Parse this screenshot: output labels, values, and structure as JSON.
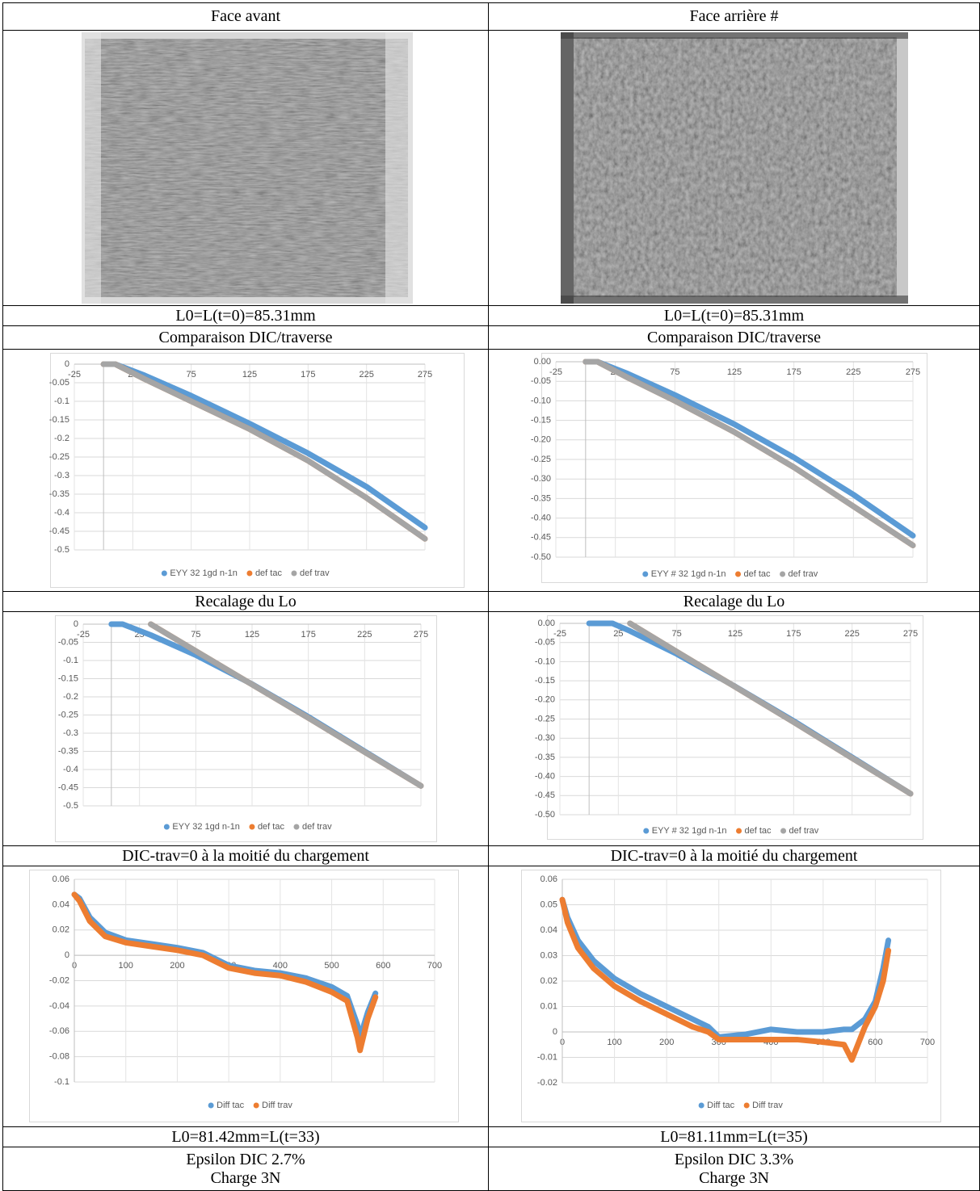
{
  "table": {
    "rows": [
      [
        "Face avant",
        "Face arrière #"
      ],
      [
        "L0=L(t=0)=85.31mm",
        "L0=L(t=0)=85.31mm"
      ],
      [
        "Comparaison DIC/traverse",
        "Comparaison DIC/traverse"
      ],
      [
        "Recalage du Lo",
        "Recalage du Lo"
      ],
      [
        "DIC-trav=0 à la moitié du chargement",
        "DIC-trav=0 à la moitié du chargement"
      ],
      [
        "L0=81.42mm=L(t=33)",
        "L0=81.11mm=L(t=35)"
      ],
      [
        [
          "Epsilon DIC 2.7%",
          "Charge 3N"
        ],
        [
          "Epsilon DIC 3.3%",
          "Charge 3N"
        ]
      ]
    ]
  },
  "chart_data": [
    {
      "type": "line",
      "grid": true,
      "legend": "bottom",
      "x": [
        0,
        10,
        35,
        75,
        125,
        175,
        225,
        275
      ],
      "xlim": [
        -25,
        275
      ],
      "xticks": [
        -25,
        25,
        75,
        125,
        175,
        225,
        275
      ],
      "ylim": [
        -0.5,
        0
      ],
      "yticks": [
        0,
        -0.05,
        -0.1,
        -0.15,
        -0.2,
        -0.25,
        -0.3,
        -0.35,
        -0.4,
        -0.45,
        -0.5
      ],
      "series": [
        {
          "name": "EYY 32 1gd n-1n",
          "color": "#5b9bd5",
          "values": [
            0,
            0,
            -0.03,
            -0.085,
            -0.16,
            -0.24,
            -0.33,
            -0.44
          ]
        },
        {
          "name": "def tac",
          "color": "#ed7d31",
          "values": [
            0,
            0,
            -0.04,
            -0.1,
            -0.175,
            -0.26,
            -0.36,
            -0.47
          ]
        },
        {
          "name": "def trav",
          "color": "#a5a5a5",
          "values": [
            0,
            0,
            -0.04,
            -0.1,
            -0.175,
            -0.26,
            -0.36,
            -0.47
          ]
        }
      ]
    },
    {
      "type": "line",
      "grid": true,
      "legend": "bottom",
      "x": [
        0,
        10,
        35,
        75,
        125,
        175,
        225,
        275
      ],
      "xlim": [
        -25,
        275
      ],
      "xticks": [
        -25,
        25,
        75,
        125,
        175,
        225,
        275
      ],
      "ylim": [
        -0.5,
        0
      ],
      "yticks": [
        {
          "value": 0,
          "label": "0.00"
        },
        -0.05,
        {
          "value": -0.1,
          "label": "-0.10"
        },
        -0.15,
        {
          "value": -0.2,
          "label": "-0.20"
        },
        -0.25,
        {
          "value": -0.3,
          "label": "-0.30"
        },
        -0.35,
        {
          "value": -0.4,
          "label": "-0.40"
        },
        -0.45,
        {
          "value": -0.5,
          "label": "-0.50"
        }
      ],
      "series": [
        {
          "name": "EYY # 32 1gd n-1n",
          "color": "#5b9bd5",
          "values": [
            0,
            0,
            -0.03,
            -0.085,
            -0.16,
            -0.245,
            -0.34,
            -0.445
          ]
        },
        {
          "name": "def tac",
          "color": "#ed7d31",
          "values": [
            0,
            0,
            -0.04,
            -0.1,
            -0.18,
            -0.27,
            -0.37,
            -0.47
          ]
        },
        {
          "name": "def trav",
          "color": "#a5a5a5",
          "values": [
            0,
            0,
            -0.04,
            -0.1,
            -0.18,
            -0.27,
            -0.37,
            -0.47
          ]
        }
      ]
    },
    {
      "type": "line",
      "grid": true,
      "legend": "bottom",
      "x": [
        0,
        10,
        35,
        75,
        125,
        175,
        225,
        275
      ],
      "xlim": [
        -25,
        275
      ],
      "xticks": [
        -25,
        25,
        75,
        125,
        175,
        225,
        275
      ],
      "ylim": [
        -0.5,
        0
      ],
      "yticks": [
        0,
        -0.05,
        -0.1,
        -0.15,
        -0.2,
        -0.25,
        -0.3,
        -0.35,
        -0.4,
        -0.45,
        -0.5
      ],
      "series": [
        {
          "name": "EYY 32 1gd n-1n",
          "color": "#5b9bd5",
          "values": [
            0,
            0,
            -0.03,
            -0.085,
            -0.165,
            -0.255,
            -0.35,
            -0.445
          ]
        },
        {
          "name": "def tac",
          "color": "#ed7d31",
          "values": [
            null,
            null,
            0,
            -0.074,
            -0.166,
            -0.258,
            -0.352,
            -0.445
          ]
        },
        {
          "name": "def trav",
          "color": "#a5a5a5",
          "values": [
            null,
            null,
            0,
            -0.074,
            -0.166,
            -0.258,
            -0.352,
            -0.445
          ]
        }
      ]
    },
    {
      "type": "line",
      "grid": true,
      "legend": "bottom",
      "x": [
        0,
        20,
        35,
        75,
        125,
        175,
        225,
        275
      ],
      "xlim": [
        -25,
        275
      ],
      "xticks": [
        -25,
        25,
        75,
        125,
        175,
        225,
        275
      ],
      "ylim": [
        -0.5,
        0
      ],
      "yticks": [
        {
          "value": 0,
          "label": "0.00"
        },
        -0.05,
        {
          "value": -0.1,
          "label": "-0.10"
        },
        -0.15,
        {
          "value": -0.2,
          "label": "-0.20"
        },
        -0.25,
        {
          "value": -0.3,
          "label": "-0.30"
        },
        -0.35,
        {
          "value": -0.4,
          "label": "-0.40"
        },
        -0.45,
        {
          "value": -0.5,
          "label": "-0.50"
        }
      ],
      "series": [
        {
          "name": "EYY # 32 1gd n-1n",
          "color": "#5b9bd5",
          "values": [
            0,
            0,
            -0.02,
            -0.08,
            -0.165,
            -0.255,
            -0.35,
            -0.445
          ]
        },
        {
          "name": "def tac",
          "color": "#ed7d31",
          "values": [
            null,
            null,
            0,
            -0.074,
            -0.166,
            -0.258,
            -0.352,
            -0.445
          ]
        },
        {
          "name": "def trav",
          "color": "#a5a5a5",
          "values": [
            null,
            null,
            0,
            -0.074,
            -0.166,
            -0.258,
            -0.352,
            -0.445
          ]
        }
      ]
    },
    {
      "type": "line",
      "grid": true,
      "legend": "bottom",
      "x": [
        0,
        10,
        30,
        60,
        100,
        150,
        200,
        250,
        300,
        350,
        400,
        450,
        500,
        530,
        550,
        555,
        570,
        585
      ],
      "xlim": [
        0,
        700
      ],
      "xticks": [
        0,
        100,
        200,
        300,
        400,
        500,
        600,
        700
      ],
      "ylim": [
        -0.1,
        0.06
      ],
      "yticks": [
        0.06,
        0.04,
        0.02,
        0,
        -0.02,
        -0.04,
        -0.06,
        -0.08,
        -0.1
      ],
      "series": [
        {
          "name": "Diff tac",
          "color": "#5b9bd5",
          "values": [
            0.048,
            0.045,
            0.03,
            0.018,
            0.012,
            0.009,
            0.006,
            0.002,
            -0.008,
            -0.012,
            -0.014,
            -0.018,
            -0.025,
            -0.032,
            -0.055,
            -0.065,
            -0.045,
            -0.03
          ]
        },
        {
          "name": "Diff trav",
          "color": "#ed7d31",
          "values": [
            0.048,
            0.043,
            0.027,
            0.015,
            0.01,
            0.007,
            0.004,
            0.0,
            -0.01,
            -0.014,
            -0.016,
            -0.021,
            -0.029,
            -0.036,
            -0.065,
            -0.075,
            -0.05,
            -0.033
          ]
        }
      ]
    },
    {
      "type": "line",
      "grid": true,
      "legend": "bottom",
      "x": [
        0,
        10,
        30,
        60,
        100,
        150,
        200,
        250,
        280,
        300,
        350,
        400,
        450,
        500,
        540,
        555,
        580,
        600,
        615,
        625
      ],
      "xlim": [
        0,
        700
      ],
      "xticks": [
        0,
        100,
        200,
        300,
        400,
        500,
        600,
        700
      ],
      "ylim": [
        -0.02,
        0.06
      ],
      "yticks": [
        0.06,
        0.05,
        0.04,
        0.03,
        0.02,
        0.01,
        0,
        -0.01,
        -0.02
      ],
      "series": [
        {
          "name": "Diff tac",
          "color": "#5b9bd5",
          "values": [
            0.052,
            0.045,
            0.036,
            0.028,
            0.021,
            0.015,
            0.01,
            0.005,
            0.002,
            -0.002,
            -0.001,
            0.001,
            0,
            0,
            0.001,
            0.001,
            0.005,
            0.012,
            0.025,
            0.036
          ]
        },
        {
          "name": "Diff trav",
          "color": "#ed7d31",
          "values": [
            0.052,
            0.043,
            0.033,
            0.025,
            0.018,
            0.012,
            0.007,
            0.002,
            0,
            -0.003,
            -0.003,
            -0.003,
            -0.003,
            -0.004,
            -0.005,
            -0.011,
            0.002,
            0.01,
            0.02,
            0.032
          ]
        }
      ]
    }
  ]
}
